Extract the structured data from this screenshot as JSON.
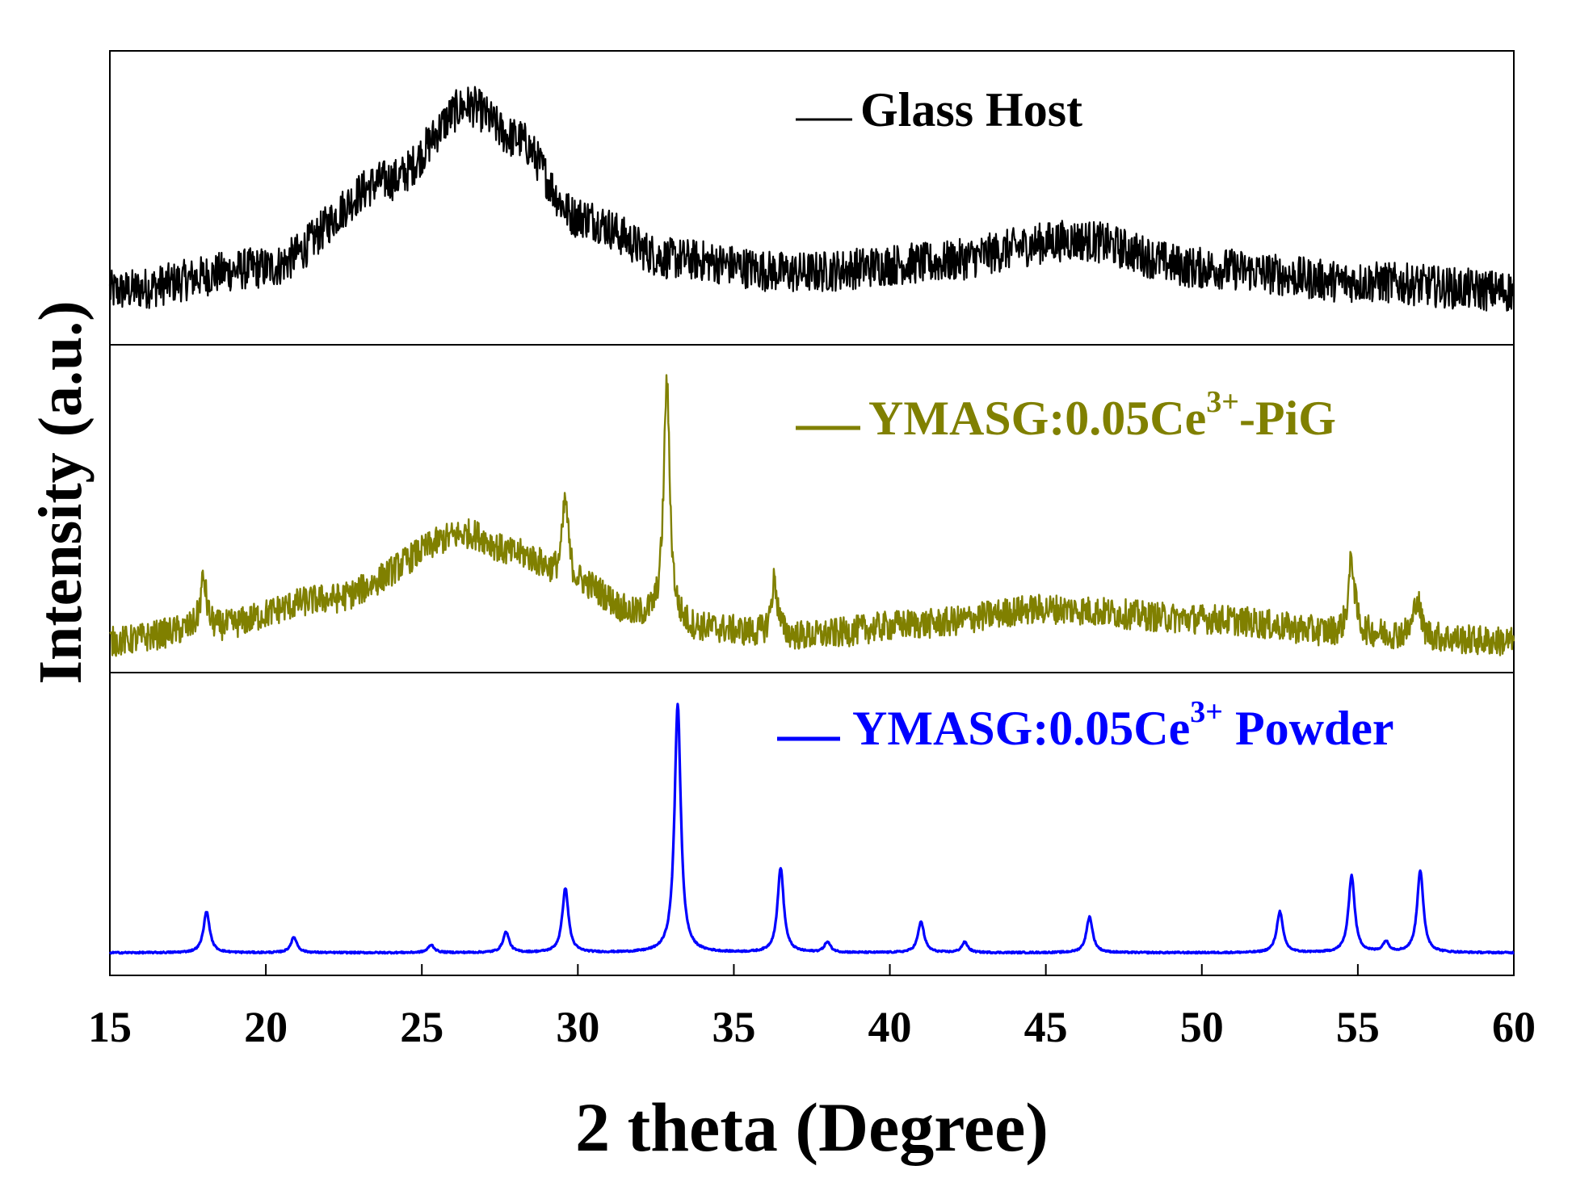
{
  "chart_data": {
    "type": "line",
    "title": "",
    "xlabel": "2 theta (Degree)",
    "ylabel": "Intensity (a.u.)",
    "xlim": [
      15,
      60
    ],
    "xticks": [
      "15",
      "20",
      "25",
      "30",
      "35",
      "40",
      "45",
      "50",
      "55",
      "60"
    ],
    "grid": false,
    "layout": "three vertically stacked panels sharing the x axis",
    "series": [
      {
        "name": "Glass Host",
        "legend_text": "Glass Host",
        "color": "#000000",
        "panel": 1,
        "noise": 0.09,
        "baseline": [
          [
            15,
            0.12
          ],
          [
            20,
            0.22
          ],
          [
            24,
            0.6
          ],
          [
            26.5,
            0.92
          ],
          [
            28,
            0.78
          ],
          [
            30,
            0.44
          ],
          [
            33,
            0.26
          ],
          [
            37,
            0.2
          ],
          [
            41,
            0.24
          ],
          [
            46,
            0.34
          ],
          [
            50,
            0.22
          ],
          [
            55,
            0.16
          ],
          [
            60,
            0.12
          ]
        ],
        "peaks": []
      },
      {
        "name": "YMASG:0.05Ce3+-PiG",
        "legend_text": "YMASG:0.05Ce",
        "legend_sup": "3+",
        "legend_suffix": "-PiG",
        "color": "#808000",
        "panel": 2,
        "noise": 0.06,
        "baseline": [
          [
            15,
            0.05
          ],
          [
            18,
            0.1
          ],
          [
            22,
            0.22
          ],
          [
            26.5,
            0.48
          ],
          [
            28,
            0.4
          ],
          [
            30,
            0.28
          ],
          [
            32,
            0.15
          ],
          [
            34,
            0.1
          ],
          [
            37,
            0.07
          ],
          [
            41,
            0.12
          ],
          [
            45,
            0.18
          ],
          [
            50,
            0.14
          ],
          [
            55,
            0.08
          ],
          [
            60,
            0.05
          ]
        ],
        "peaks": [
          [
            18,
            0.2
          ],
          [
            29.6,
            0.32
          ],
          [
            32.85,
            0.95
          ],
          [
            36.3,
            0.22
          ],
          [
            54.8,
            0.3
          ],
          [
            56.9,
            0.16
          ]
        ]
      },
      {
        "name": "YMASG:0.05Ce3+ Powder",
        "legend_text": "YMASG:0.05Ce",
        "legend_sup": "3+",
        "legend_suffix": " Powder",
        "color": "#0000ff",
        "panel": 3,
        "noise": 0.003,
        "baseline": [
          [
            15,
            0.0
          ],
          [
            60,
            0.0
          ]
        ],
        "peaks": [
          [
            18.1,
            0.16
          ],
          [
            20.9,
            0.06
          ],
          [
            25.3,
            0.03
          ],
          [
            27.7,
            0.08
          ],
          [
            29.6,
            0.25
          ],
          [
            33.2,
            0.97
          ],
          [
            36.5,
            0.33
          ],
          [
            38,
            0.04
          ],
          [
            41,
            0.12
          ],
          [
            42.4,
            0.04
          ],
          [
            46.4,
            0.14
          ],
          [
            52.5,
            0.16
          ],
          [
            54.8,
            0.3
          ],
          [
            55.9,
            0.04
          ],
          [
            57,
            0.32
          ]
        ]
      }
    ]
  }
}
